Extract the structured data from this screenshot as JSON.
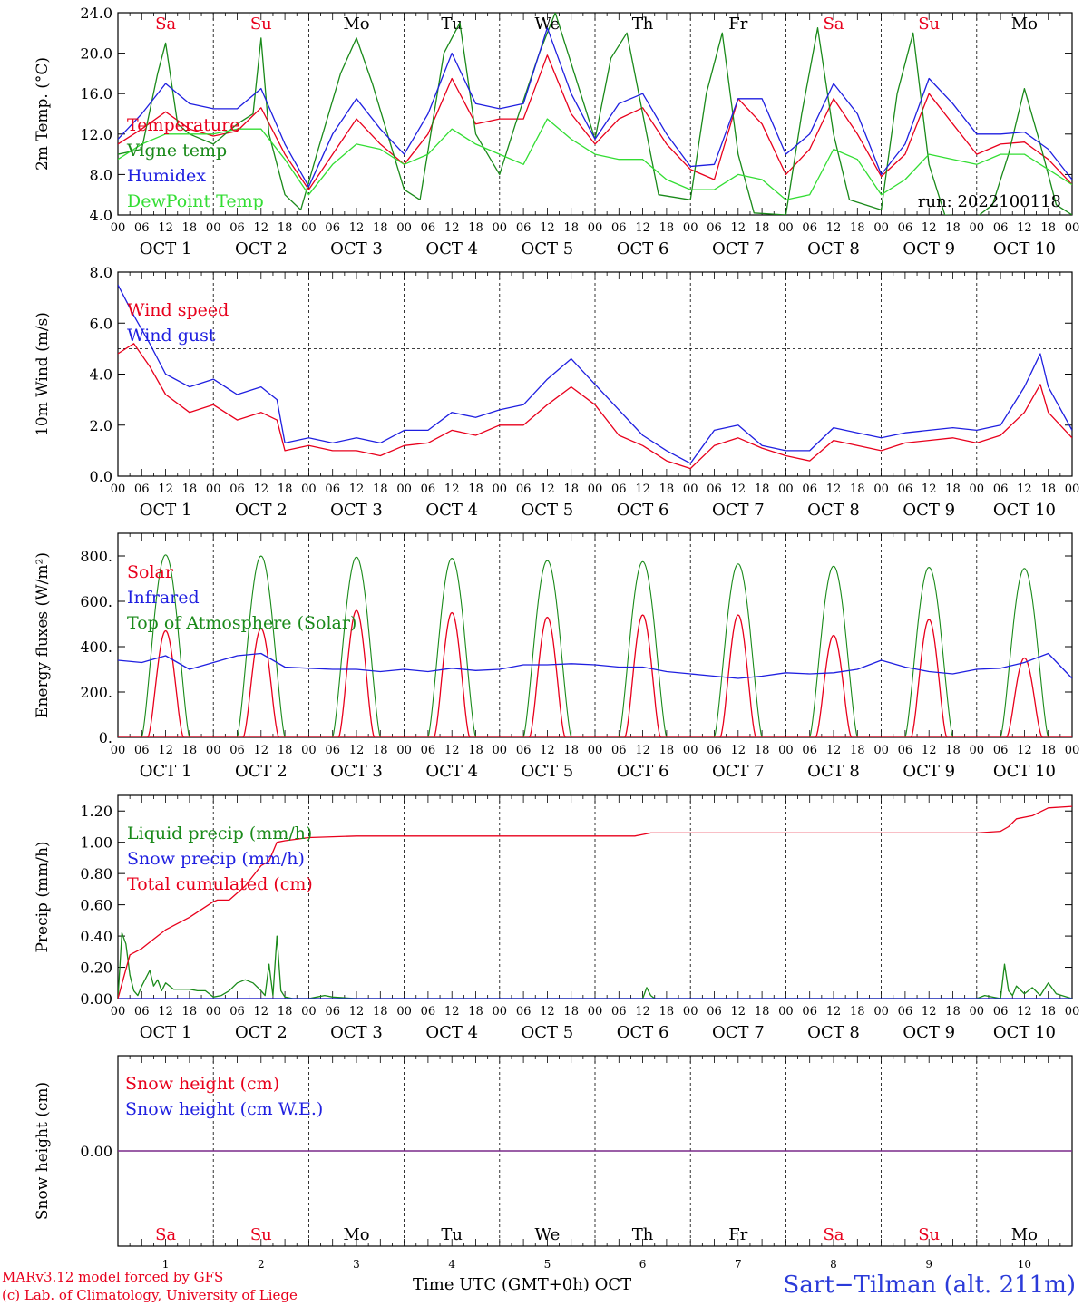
{
  "days": {
    "dates": [
      "1",
      "2",
      "3",
      "4",
      "5",
      "6",
      "7",
      "8",
      "9",
      "10"
    ],
    "month": "OCT",
    "names": [
      "Sa",
      "Su",
      "Mo",
      "Tu",
      "We",
      "Th",
      "Fr",
      "Sa",
      "Su",
      "Mo"
    ],
    "weekend_color": "#e8001c",
    "weekday_color": "#000000",
    "hour_ticks": [
      "00",
      "06",
      "12",
      "18"
    ],
    "final_tick": "00"
  },
  "colors": {
    "red": "#e8001c",
    "blue": "#1f1fe0",
    "green": "#1a8a1a",
    "lightgreen": "#33dd33",
    "purple": "#7a2a8a"
  },
  "chart_data": [
    {
      "name": "temperature",
      "type": "line",
      "ylabel": "2m Temp. (°C)",
      "ylim": [
        4,
        24
      ],
      "yticks": [
        "4.0",
        "8.0",
        "12.0",
        "16.0",
        "20.0",
        "24.0"
      ],
      "annotation": "run: 2022100118",
      "x_unit": "hours since Oct 1 00 UTC",
      "series": [
        {
          "name": "Temperature",
          "color": "red",
          "x": [
            0,
            6,
            12,
            18,
            24,
            30,
            36,
            42,
            48,
            54,
            60,
            66,
            72,
            78,
            84,
            90,
            96,
            102,
            108,
            114,
            120,
            126,
            132,
            138,
            144,
            150,
            156,
            162,
            168,
            174,
            180,
            186,
            192,
            198,
            204,
            210,
            216,
            222,
            228,
            234,
            240
          ],
          "y": [
            11,
            12.5,
            14.2,
            12.5,
            11.8,
            12.3,
            14.6,
            10,
            6.5,
            10,
            13.5,
            11,
            9,
            12,
            17.5,
            13,
            13.5,
            13.5,
            19.8,
            14,
            11,
            13.5,
            14.6,
            11,
            8.5,
            7.5,
            15.5,
            13,
            8,
            10.5,
            15.5,
            12,
            7.8,
            10,
            16,
            13,
            10,
            11,
            11.2,
            9.5,
            7
          ]
        },
        {
          "name": "Vigne temp",
          "color": "green",
          "x": [
            0,
            6,
            10,
            12,
            15,
            18,
            24,
            30,
            34,
            36,
            38,
            42,
            46,
            50,
            56,
            60,
            64,
            72,
            76,
            82,
            86,
            90,
            96,
            100,
            106,
            110,
            114,
            120,
            124,
            128,
            132,
            136,
            144,
            148,
            152,
            156,
            160,
            168,
            172,
            176,
            180,
            184,
            192,
            196,
            200,
            204,
            208,
            216,
            220,
            224,
            228,
            232,
            236,
            240
          ],
          "y": [
            10,
            10.5,
            18,
            21,
            13,
            12,
            11,
            13,
            14,
            21.5,
            12,
            6,
            4.5,
            10,
            18,
            21.5,
            17,
            6.5,
            5.5,
            20,
            23,
            12,
            8,
            13,
            20,
            24,
            19,
            11.5,
            19.5,
            22,
            14,
            6,
            5.5,
            16,
            22,
            10,
            4.2,
            4,
            14,
            22.5,
            12,
            5.5,
            4.5,
            16,
            22,
            9,
            4,
            3.8,
            5,
            10,
            16.5,
            11,
            5,
            4
          ]
        },
        {
          "name": "Humidex",
          "color": "blue",
          "x": [
            0,
            6,
            12,
            18,
            24,
            30,
            36,
            42,
            48,
            54,
            60,
            66,
            72,
            78,
            84,
            90,
            96,
            102,
            108,
            114,
            120,
            126,
            132,
            138,
            144,
            150,
            156,
            162,
            168,
            174,
            180,
            186,
            192,
            198,
            204,
            210,
            216,
            222,
            228,
            234,
            240
          ],
          "y": [
            11.5,
            14,
            17,
            15,
            14.5,
            14.5,
            16.5,
            11,
            6.8,
            12,
            15.5,
            12.5,
            10,
            14,
            20,
            15,
            14.5,
            15,
            22.5,
            16,
            11.5,
            15,
            16,
            12,
            8.8,
            9,
            15.5,
            15.5,
            10,
            12,
            17,
            14,
            8,
            11,
            17.5,
            15,
            12,
            12,
            12.2,
            10.5,
            7.5
          ]
        },
        {
          "name": "DewPoint Temp",
          "color": "lightgreen",
          "x": [
            0,
            6,
            12,
            18,
            24,
            30,
            36,
            42,
            48,
            54,
            60,
            66,
            72,
            78,
            84,
            90,
            96,
            102,
            108,
            114,
            120,
            126,
            132,
            138,
            144,
            150,
            156,
            162,
            168,
            174,
            180,
            186,
            192,
            198,
            204,
            210,
            216,
            222,
            228,
            234,
            240
          ],
          "y": [
            9.5,
            11,
            12,
            12,
            12,
            12.5,
            12.5,
            9.5,
            6,
            9,
            11,
            10.5,
            9,
            10,
            12.5,
            11,
            10,
            9,
            13.5,
            11.5,
            10,
            9.5,
            9.5,
            7.5,
            6.5,
            6.5,
            8,
            7.5,
            5.5,
            6,
            10.5,
            9.5,
            6,
            7.5,
            10,
            9.5,
            9,
            10,
            10,
            8.5,
            7
          ]
        }
      ]
    },
    {
      "name": "wind",
      "type": "line",
      "ylabel": "10m Wind (m/s)",
      "ylim": [
        0,
        8
      ],
      "yticks": [
        "0.0",
        "2.0",
        "4.0",
        "6.0",
        "8.0"
      ],
      "reference_line": 5,
      "x_unit": "hours since Oct 1 00 UTC",
      "series": [
        {
          "name": "Wind speed",
          "color": "red",
          "x": [
            0,
            4,
            8,
            12,
            18,
            24,
            30,
            36,
            40,
            42,
            48,
            54,
            60,
            66,
            72,
            78,
            84,
            90,
            96,
            102,
            108,
            114,
            120,
            126,
            132,
            138,
            144,
            150,
            156,
            162,
            168,
            174,
            180,
            186,
            192,
            198,
            204,
            210,
            216,
            222,
            228,
            232,
            234,
            240
          ],
          "y": [
            4.8,
            5.2,
            4.3,
            3.2,
            2.5,
            2.8,
            2.2,
            2.5,
            2.2,
            1.0,
            1.2,
            1.0,
            1.0,
            0.8,
            1.2,
            1.3,
            1.8,
            1.6,
            2.0,
            2.0,
            2.8,
            3.5,
            2.8,
            1.6,
            1.2,
            0.6,
            0.3,
            1.2,
            1.5,
            1.1,
            0.8,
            0.6,
            1.4,
            1.2,
            1.0,
            1.3,
            1.4,
            1.5,
            1.3,
            1.6,
            2.5,
            3.6,
            2.5,
            1.5
          ]
        },
        {
          "name": "Wind gust",
          "color": "blue",
          "x": [
            0,
            4,
            8,
            12,
            18,
            24,
            30,
            36,
            40,
            42,
            48,
            54,
            60,
            66,
            72,
            78,
            84,
            90,
            96,
            102,
            108,
            114,
            120,
            126,
            132,
            138,
            144,
            150,
            156,
            162,
            168,
            174,
            180,
            186,
            192,
            198,
            204,
            210,
            216,
            222,
            228,
            232,
            234,
            240
          ],
          "y": [
            7.5,
            6.3,
            5.2,
            4.0,
            3.5,
            3.8,
            3.2,
            3.5,
            3.0,
            1.3,
            1.5,
            1.3,
            1.5,
            1.3,
            1.8,
            1.8,
            2.5,
            2.3,
            2.6,
            2.8,
            3.8,
            4.6,
            3.6,
            2.6,
            1.6,
            1.0,
            0.5,
            1.8,
            2.0,
            1.2,
            1.0,
            1.0,
            1.9,
            1.7,
            1.5,
            1.7,
            1.8,
            1.9,
            1.8,
            2.0,
            3.5,
            4.8,
            3.5,
            1.8
          ]
        }
      ]
    },
    {
      "name": "energy",
      "type": "line",
      "ylabel": "Energy fluxes (W/m²)",
      "ylim": [
        0,
        900
      ],
      "yticks": [
        "0.",
        "200.",
        "400.",
        "600.",
        "800."
      ],
      "ytick_values": [
        0,
        200,
        400,
        600,
        800
      ],
      "x_unit": "hours since Oct 1 00 UTC",
      "toa_peaks": [
        805,
        800,
        795,
        790,
        780,
        775,
        765,
        755,
        750,
        745
      ],
      "solar_peaks": [
        470,
        480,
        560,
        550,
        530,
        540,
        540,
        450,
        520,
        350
      ],
      "series": [
        {
          "name": "Solar",
          "color": "red"
        },
        {
          "name": "Infrared",
          "color": "blue",
          "x": [
            0,
            6,
            12,
            18,
            24,
            30,
            36,
            42,
            48,
            54,
            60,
            66,
            72,
            78,
            84,
            90,
            96,
            102,
            108,
            114,
            120,
            126,
            132,
            138,
            144,
            150,
            156,
            162,
            168,
            174,
            180,
            186,
            192,
            198,
            204,
            210,
            216,
            222,
            228,
            234,
            240
          ],
          "y": [
            340,
            330,
            360,
            300,
            330,
            360,
            370,
            310,
            305,
            300,
            300,
            290,
            300,
            290,
            305,
            295,
            300,
            320,
            320,
            325,
            320,
            310,
            310,
            290,
            280,
            270,
            260,
            270,
            285,
            280,
            285,
            300,
            340,
            310,
            290,
            280,
            300,
            305,
            330,
            370,
            260
          ]
        },
        {
          "name": "Top of Atmosphere (Solar)",
          "color": "green"
        }
      ]
    },
    {
      "name": "precip",
      "type": "line",
      "ylabel": "Precip (mm/h)",
      "ylim": [
        0,
        1.3
      ],
      "yticks": [
        "0.00",
        "0.20",
        "0.40",
        "0.60",
        "0.80",
        "1.00",
        "1.20"
      ],
      "ytick_values": [
        0,
        0.2,
        0.4,
        0.6,
        0.8,
        1.0,
        1.2
      ],
      "x_unit": "hours since Oct 1 00 UTC",
      "series": [
        {
          "name": "Liquid precip (mm/h)",
          "color": "green",
          "x": [
            0,
            1,
            2,
            3,
            4,
            5,
            6,
            8,
            9,
            10,
            11,
            12,
            14,
            16,
            18,
            20,
            22,
            24,
            26,
            28,
            30,
            32,
            34,
            36,
            37,
            38,
            39,
            40,
            41,
            42,
            44,
            48,
            50,
            52,
            54,
            60,
            84,
            96,
            132,
            133,
            134,
            135,
            136,
            216,
            218,
            222,
            223,
            224,
            225,
            226,
            228,
            230,
            232,
            234,
            236,
            240
          ],
          "y": [
            0,
            0.42,
            0.35,
            0.15,
            0.05,
            0.02,
            0.08,
            0.18,
            0.08,
            0.12,
            0.05,
            0.1,
            0.06,
            0.06,
            0.06,
            0.05,
            0.05,
            0.01,
            0.02,
            0.05,
            0.1,
            0.12,
            0.1,
            0.05,
            0.02,
            0.22,
            0.02,
            0.4,
            0.05,
            0.01,
            0.0,
            0.0,
            0.01,
            0.02,
            0.01,
            0.0,
            0.0,
            0.0,
            0.0,
            0.07,
            0.02,
            0.0,
            0.0,
            0.0,
            0.02,
            0.0,
            0.22,
            0.05,
            0.02,
            0.08,
            0.03,
            0.07,
            0.02,
            0.1,
            0.03,
            0.0
          ]
        },
        {
          "name": "Snow precip (mm/h)",
          "color": "blue",
          "x": [
            0,
            240
          ],
          "y": [
            0,
            0
          ]
        },
        {
          "name": "Total cumulated (cm)",
          "color": "red",
          "x": [
            0,
            3,
            6,
            9,
            12,
            18,
            24,
            25,
            28,
            32,
            36,
            38,
            40,
            42,
            48,
            60,
            84,
            96,
            108,
            120,
            130,
            132,
            134,
            144,
            156,
            168,
            192,
            216,
            222,
            224,
            226,
            230,
            234,
            240
          ],
          "y": [
            0,
            0.28,
            0.32,
            0.38,
            0.44,
            0.52,
            0.62,
            0.63,
            0.63,
            0.72,
            0.85,
            0.88,
            1.0,
            1.01,
            1.03,
            1.04,
            1.04,
            1.04,
            1.04,
            1.04,
            1.04,
            1.05,
            1.06,
            1.06,
            1.06,
            1.06,
            1.06,
            1.06,
            1.07,
            1.1,
            1.15,
            1.17,
            1.22,
            1.23
          ]
        }
      ]
    },
    {
      "name": "snow",
      "type": "line",
      "ylabel": "Snow height (cm)",
      "yticks": [
        "0.00"
      ],
      "x_unit": "hours since Oct 1 00 UTC",
      "series": [
        {
          "name": "Snow height (cm)",
          "color": "red",
          "x": [
            0,
            240
          ],
          "y": [
            0,
            0
          ]
        },
        {
          "name": "Snow height (cm W.E.)",
          "color": "blue",
          "x": [
            0,
            240
          ],
          "y": [
            0,
            0
          ]
        }
      ]
    }
  ],
  "footer": {
    "credit_line1": "MARv3.12 model forced by GFS",
    "credit_line2": "(c) Lab. of Climatology, University of Liege",
    "xaxis_title": "Time UTC (GMT+0h) OCT",
    "station": "Sart−Tilman (alt. 211m)"
  }
}
